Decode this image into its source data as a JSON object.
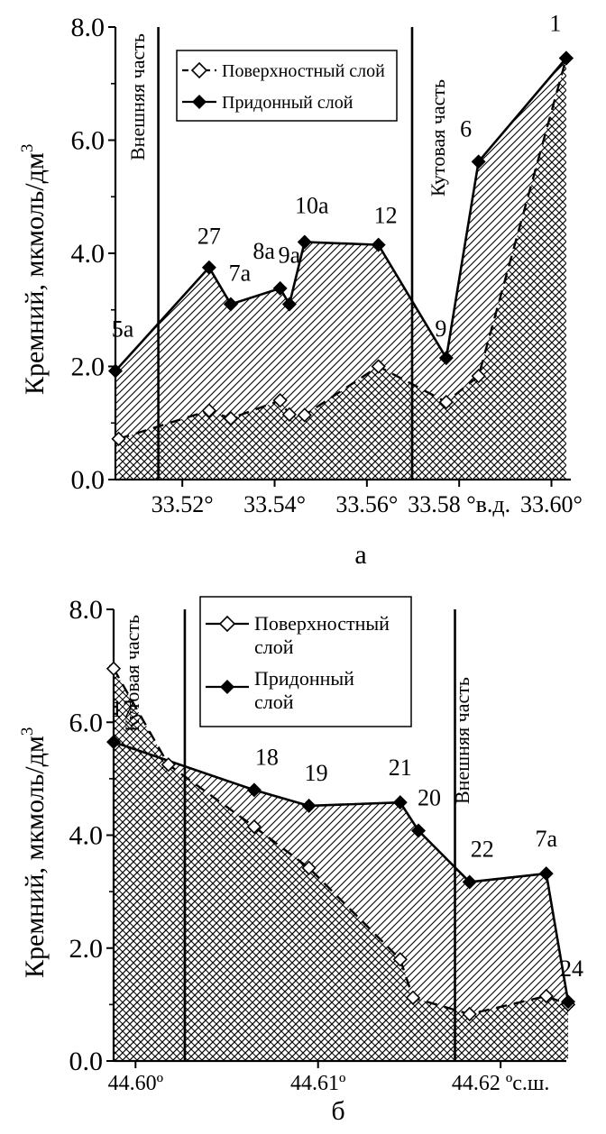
{
  "chart_data": [
    {
      "type": "area",
      "panel_label": "а",
      "ylabel": "Кремний, мкмоль/дм",
      "ylabel_sup": "3",
      "ylim": [
        0,
        8
      ],
      "y_ticks": [
        "0.0",
        "2.0",
        "4.0",
        "6.0",
        "8.0"
      ],
      "x_ticks": [
        {
          "x": 33.52,
          "label": "33.52°"
        },
        {
          "x": 33.54,
          "label": "33.54°"
        },
        {
          "x": 33.56,
          "label": "33.56°"
        },
        {
          "x": 33.58,
          "label": "33.58 °в.д."
        },
        {
          "x": 33.6,
          "label": "33.60°"
        }
      ],
      "xlim": [
        33.5055,
        33.6042
      ],
      "zone_lines": [
        33.5148,
        33.5698
      ],
      "zone_labels": [
        "Внешняя часть",
        "Кутовая часть"
      ],
      "legend_position": "top-center",
      "series": [
        {
          "name": "Поверхностный слой",
          "style": "dashed-open-diamond",
          "x": [
            33.5062,
            33.5258,
            33.5305,
            33.5412,
            33.5432,
            33.5465,
            33.5625,
            33.5772,
            33.5842,
            33.6032
          ],
          "y": [
            0.72,
            1.22,
            1.08,
            1.4,
            1.15,
            1.14,
            2.0,
            1.37,
            1.83,
            7.45
          ]
        },
        {
          "name": "Придонный слой",
          "style": "solid-filled-diamond",
          "x": [
            33.5055,
            33.5258,
            33.5305,
            33.5412,
            33.5432,
            33.5465,
            33.5625,
            33.5772,
            33.5842,
            33.6032
          ],
          "y": [
            1.92,
            3.75,
            3.1,
            3.38,
            3.1,
            4.2,
            4.15,
            2.15,
            5.62,
            7.45
          ]
        }
      ],
      "point_labels": [
        {
          "text": "5а",
          "x": 33.5055,
          "y": 1.92
        },
        {
          "text": "27",
          "x": 33.5258,
          "y": 3.75
        },
        {
          "text": "7а",
          "x": 33.5305,
          "y": 3.1
        },
        {
          "text": "8а",
          "x": 33.5365,
          "y": 3.2
        },
        {
          "text": "9а",
          "x": 33.5432,
          "y": 3.1
        },
        {
          "text": "10а",
          "x": 33.5465,
          "y": 4.2
        },
        {
          "text": "12",
          "x": 33.5625,
          "y": 4.15
        },
        {
          "text": "9",
          "x": 33.5772,
          "y": 2.15
        },
        {
          "text": "6",
          "x": 33.5842,
          "y": 5.62
        },
        {
          "text": "1",
          "x": 33.6032,
          "y": 7.45
        }
      ],
      "point_label_offsets": [
        [
          8,
          -38
        ],
        [
          0,
          -26
        ],
        [
          10,
          -26
        ],
        [
          6,
          -44
        ],
        [
          0,
          -46
        ],
        [
          8,
          -32
        ],
        [
          8,
          -24
        ],
        [
          -6,
          -24
        ],
        [
          -14,
          -28
        ],
        [
          -12,
          -30
        ]
      ]
    },
    {
      "type": "area",
      "panel_label": "б",
      "ylabel": "Кремний, мкмоль/дм",
      "ylabel_sup": "3",
      "ylim": [
        0,
        8
      ],
      "y_ticks": [
        "0.0",
        "2.0",
        "4.0",
        "6.0",
        "8.0"
      ],
      "x_ticks": [
        {
          "x": 44.6,
          "label": "44.60º"
        },
        {
          "x": 44.61,
          "label": "44.61º"
        },
        {
          "x": 44.62,
          "label": "44.62 ºс.ш."
        }
      ],
      "xlim": [
        44.5988,
        44.6236
      ],
      "zone_lines": [
        44.6027,
        44.6175
      ],
      "zone_labels": [
        "Кутовая часть",
        "Внешняя часть"
      ],
      "legend_position": "top-center",
      "series": [
        {
          "name": "Поверхностный слой",
          "style": "dashed-open-diamond",
          "x": [
            44.5988,
            44.6018,
            44.6065,
            44.6095,
            44.6145,
            44.6152,
            44.6183,
            44.6225,
            44.6237
          ],
          "y": [
            6.95,
            5.25,
            4.15,
            3.42,
            1.8,
            1.12,
            0.83,
            1.15,
            1.0
          ]
        },
        {
          "name": "Придонный слой",
          "style": "solid-filled-diamond",
          "x": [
            44.5988,
            44.6065,
            44.6095,
            44.6145,
            44.6155,
            44.6183,
            44.6225,
            44.6237
          ],
          "y": [
            5.65,
            4.8,
            4.52,
            4.58,
            4.08,
            3.17,
            3.32,
            1.05
          ]
        }
      ],
      "point_labels": [
        {
          "text": "17",
          "x": 44.5988,
          "y": 5.65
        },
        {
          "text": "18",
          "x": 44.6065,
          "y": 4.8
        },
        {
          "text": "19",
          "x": 44.6095,
          "y": 4.52
        },
        {
          "text": "21",
          "x": 44.6145,
          "y": 4.58
        },
        {
          "text": "20",
          "x": 44.6155,
          "y": 4.08
        },
        {
          "text": "22",
          "x": 44.6183,
          "y": 3.17
        },
        {
          "text": "7а",
          "x": 44.6225,
          "y": 3.32
        },
        {
          "text": "24",
          "x": 44.6237,
          "y": 1.05
        }
      ],
      "point_label_offsets": [
        [
          10,
          -28
        ],
        [
          14,
          -28
        ],
        [
          8,
          -28
        ],
        [
          0,
          -30
        ],
        [
          12,
          -28
        ],
        [
          14,
          -28
        ],
        [
          0,
          -30
        ],
        [
          4,
          -28
        ]
      ]
    }
  ]
}
